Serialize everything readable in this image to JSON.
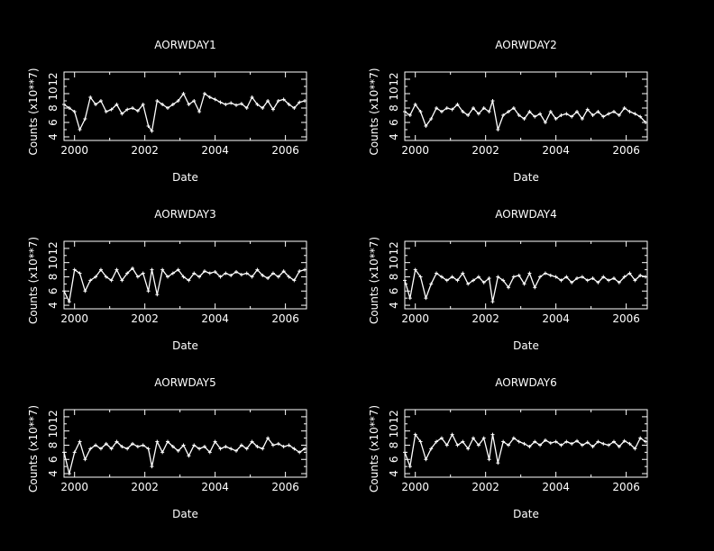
{
  "chart_data": [
    {
      "type": "line",
      "title": "AORWDAY1",
      "xlabel": "Date",
      "ylabel": "Counts (x10**7)",
      "xlim": [
        1999.7,
        2006.6
      ],
      "ylim": [
        3.5,
        13
      ],
      "xticks": [
        2000,
        2002,
        2004,
        2006
      ],
      "yticks": [
        4,
        6,
        8,
        10,
        12
      ],
      "grid": false,
      "x": [
        1999.7,
        1999.85,
        2000.0,
        2000.15,
        2000.3,
        2000.45,
        2000.6,
        2000.75,
        2000.9,
        2001.05,
        2001.2,
        2001.35,
        2001.5,
        2001.65,
        2001.8,
        2001.95,
        2002.1,
        2002.2,
        2002.35,
        2002.5,
        2002.65,
        2002.8,
        2002.95,
        2003.1,
        2003.25,
        2003.4,
        2003.55,
        2003.7,
        2003.85,
        2004.0,
        2004.15,
        2004.3,
        2004.45,
        2004.6,
        2004.75,
        2004.9,
        2005.05,
        2005.2,
        2005.35,
        2005.5,
        2005.65,
        2005.8,
        2005.95,
        2006.1,
        2006.25,
        2006.4,
        2006.55
      ],
      "y": [
        8.5,
        8.0,
        7.5,
        5.0,
        6.5,
        9.5,
        8.5,
        9.0,
        7.5,
        7.8,
        8.5,
        7.2,
        7.8,
        8.0,
        7.6,
        8.5,
        5.5,
        4.8,
        9.0,
        8.5,
        8.0,
        8.5,
        9.0,
        10.0,
        8.5,
        9.0,
        7.5,
        10.0,
        9.5,
        9.2,
        8.8,
        8.5,
        8.7,
        8.4,
        8.6,
        8.0,
        9.5,
        8.5,
        8.0,
        9.0,
        7.8,
        9.0,
        9.2,
        8.5,
        8.0,
        8.8,
        9.0
      ]
    },
    {
      "type": "line",
      "title": "AORWDAY2",
      "xlabel": "Date",
      "ylabel": "Counts (x10**7)",
      "xlim": [
        1999.7,
        2006.6
      ],
      "ylim": [
        3.5,
        13
      ],
      "xticks": [
        2000,
        2002,
        2004,
        2006
      ],
      "yticks": [
        4,
        6,
        8,
        10,
        12
      ],
      "grid": false,
      "x": [
        1999.7,
        1999.85,
        2000.0,
        2000.15,
        2000.3,
        2000.45,
        2000.6,
        2000.75,
        2000.9,
        2001.05,
        2001.2,
        2001.35,
        2001.5,
        2001.65,
        2001.8,
        2001.95,
        2002.1,
        2002.2,
        2002.35,
        2002.5,
        2002.65,
        2002.8,
        2002.95,
        2003.1,
        2003.25,
        2003.4,
        2003.55,
        2003.7,
        2003.85,
        2004.0,
        2004.15,
        2004.3,
        2004.45,
        2004.6,
        2004.75,
        2004.9,
        2005.05,
        2005.2,
        2005.35,
        2005.5,
        2005.65,
        2005.8,
        2005.95,
        2006.1,
        2006.25,
        2006.4,
        2006.55
      ],
      "y": [
        7.5,
        7.0,
        8.5,
        7.5,
        5.5,
        6.5,
        8.0,
        7.5,
        8.0,
        7.8,
        8.5,
        7.5,
        7.0,
        8.0,
        7.2,
        8.0,
        7.5,
        9.0,
        5.0,
        7.0,
        7.5,
        8.0,
        7.0,
        6.5,
        7.5,
        6.8,
        7.2,
        6.0,
        7.5,
        6.5,
        7.0,
        7.2,
        6.8,
        7.5,
        6.5,
        7.8,
        7.0,
        7.5,
        6.8,
        7.2,
        7.5,
        7.0,
        8.0,
        7.5,
        7.2,
        6.8,
        6.0
      ]
    },
    {
      "type": "line",
      "title": "AORWDAY3",
      "xlabel": "Date",
      "ylabel": "Counts (x10**7)",
      "xlim": [
        1999.7,
        2006.6
      ],
      "ylim": [
        3.5,
        13
      ],
      "xticks": [
        2000,
        2002,
        2004,
        2006
      ],
      "yticks": [
        4,
        6,
        8,
        10,
        12
      ],
      "grid": false,
      "x": [
        1999.7,
        1999.85,
        2000.0,
        2000.15,
        2000.3,
        2000.45,
        2000.6,
        2000.75,
        2000.9,
        2001.05,
        2001.2,
        2001.35,
        2001.5,
        2001.65,
        2001.8,
        2001.95,
        2002.1,
        2002.2,
        2002.35,
        2002.5,
        2002.65,
        2002.8,
        2002.95,
        2003.1,
        2003.25,
        2003.4,
        2003.55,
        2003.7,
        2003.85,
        2004.0,
        2004.15,
        2004.3,
        2004.45,
        2004.6,
        2004.75,
        2004.9,
        2005.05,
        2005.2,
        2005.35,
        2005.5,
        2005.65,
        2005.8,
        2005.95,
        2006.1,
        2006.25,
        2006.4,
        2006.55
      ],
      "y": [
        6.0,
        4.5,
        9.0,
        8.5,
        6.0,
        7.5,
        8.0,
        9.0,
        8.0,
        7.5,
        9.0,
        7.5,
        8.5,
        9.2,
        8.0,
        8.5,
        6.0,
        9.0,
        5.5,
        9.0,
        8.0,
        8.5,
        9.0,
        8.0,
        7.5,
        8.5,
        8.0,
        8.8,
        8.5,
        8.7,
        8.0,
        8.5,
        8.2,
        8.7,
        8.3,
        8.5,
        8.0,
        9.0,
        8.2,
        7.8,
        8.5,
        8.0,
        8.8,
        8.0,
        7.5,
        8.8,
        9.0
      ]
    },
    {
      "type": "line",
      "title": "AORWDAY4",
      "xlabel": "Date",
      "ylabel": "Counts (x10**7)",
      "xlim": [
        1999.7,
        2006.6
      ],
      "ylim": [
        3.5,
        13
      ],
      "xticks": [
        2000,
        2002,
        2004,
        2006
      ],
      "yticks": [
        4,
        6,
        8,
        10,
        12
      ],
      "grid": false,
      "x": [
        1999.7,
        1999.85,
        2000.0,
        2000.15,
        2000.3,
        2000.45,
        2000.6,
        2000.75,
        2000.9,
        2001.05,
        2001.2,
        2001.35,
        2001.5,
        2001.65,
        2001.8,
        2001.95,
        2002.1,
        2002.2,
        2002.35,
        2002.5,
        2002.65,
        2002.8,
        2002.95,
        2003.1,
        2003.25,
        2003.4,
        2003.55,
        2003.7,
        2003.85,
        2004.0,
        2004.15,
        2004.3,
        2004.45,
        2004.6,
        2004.75,
        2004.9,
        2005.05,
        2005.2,
        2005.35,
        2005.5,
        2005.65,
        2005.8,
        2005.95,
        2006.1,
        2006.25,
        2006.4,
        2006.55
      ],
      "y": [
        7.5,
        5.0,
        9.0,
        8.0,
        5.0,
        7.0,
        8.5,
        8.0,
        7.5,
        8.0,
        7.5,
        8.5,
        7.0,
        7.5,
        8.0,
        7.2,
        7.8,
        4.5,
        8.0,
        7.5,
        6.5,
        8.0,
        8.2,
        7.0,
        8.5,
        6.5,
        8.0,
        8.5,
        8.2,
        8.0,
        7.5,
        8.0,
        7.2,
        7.8,
        8.0,
        7.5,
        7.8,
        7.2,
        8.0,
        7.5,
        7.8,
        7.2,
        8.0,
        8.5,
        7.5,
        8.2,
        8.0
      ]
    },
    {
      "type": "line",
      "title": "AORWDAY5",
      "xlabel": "Date",
      "ylabel": "Counts (x10**7)",
      "xlim": [
        1999.7,
        2006.6
      ],
      "ylim": [
        3.5,
        13
      ],
      "xticks": [
        2000,
        2002,
        2004,
        2006
      ],
      "yticks": [
        4,
        6,
        8,
        10,
        12
      ],
      "grid": false,
      "x": [
        1999.7,
        1999.85,
        2000.0,
        2000.15,
        2000.3,
        2000.45,
        2000.6,
        2000.75,
        2000.9,
        2001.05,
        2001.2,
        2001.35,
        2001.5,
        2001.65,
        2001.8,
        2001.95,
        2002.1,
        2002.2,
        2002.35,
        2002.5,
        2002.65,
        2002.8,
        2002.95,
        2003.1,
        2003.25,
        2003.4,
        2003.55,
        2003.7,
        2003.85,
        2004.0,
        2004.15,
        2004.3,
        2004.45,
        2004.6,
        2004.75,
        2004.9,
        2005.05,
        2005.2,
        2005.35,
        2005.5,
        2005.65,
        2005.8,
        2005.95,
        2006.1,
        2006.25,
        2006.4,
        2006.55
      ],
      "y": [
        7.0,
        4.0,
        7.0,
        8.5,
        6.0,
        7.5,
        8.0,
        7.5,
        8.2,
        7.5,
        8.5,
        7.8,
        7.5,
        8.2,
        7.8,
        8.0,
        7.5,
        5.0,
        8.5,
        7.0,
        8.5,
        7.8,
        7.2,
        8.0,
        6.5,
        8.0,
        7.5,
        7.8,
        7.0,
        8.5,
        7.5,
        7.8,
        7.5,
        7.2,
        8.0,
        7.5,
        8.5,
        7.8,
        7.5,
        9.0,
        8.0,
        8.2,
        7.8,
        8.0,
        7.5,
        7.0,
        7.5
      ]
    },
    {
      "type": "line",
      "title": "AORWDAY6",
      "xlabel": "Date",
      "ylabel": "Counts (x10**7)",
      "xlim": [
        1999.7,
        2006.6
      ],
      "ylim": [
        3.5,
        13
      ],
      "xticks": [
        2000,
        2002,
        2004,
        2006
      ],
      "yticks": [
        4,
        6,
        8,
        10,
        12
      ],
      "grid": false,
      "x": [
        1999.7,
        1999.85,
        2000.0,
        2000.15,
        2000.3,
        2000.45,
        2000.6,
        2000.75,
        2000.9,
        2001.05,
        2001.2,
        2001.35,
        2001.5,
        2001.65,
        2001.8,
        2001.95,
        2002.1,
        2002.2,
        2002.35,
        2002.5,
        2002.65,
        2002.8,
        2002.95,
        2003.1,
        2003.25,
        2003.4,
        2003.55,
        2003.7,
        2003.85,
        2004.0,
        2004.15,
        2004.3,
        2004.45,
        2004.6,
        2004.75,
        2004.9,
        2005.05,
        2005.2,
        2005.35,
        2005.5,
        2005.65,
        2005.8,
        2005.95,
        2006.1,
        2006.25,
        2006.4,
        2006.55
      ],
      "y": [
        7.0,
        5.0,
        9.5,
        8.5,
        6.0,
        7.5,
        8.5,
        9.0,
        8.0,
        9.5,
        8.0,
        8.5,
        7.5,
        9.0,
        8.0,
        9.0,
        6.0,
        9.5,
        5.5,
        8.5,
        8.0,
        9.0,
        8.5,
        8.2,
        7.8,
        8.5,
        8.0,
        8.7,
        8.3,
        8.5,
        8.0,
        8.5,
        8.2,
        8.6,
        8.0,
        8.4,
        7.8,
        8.5,
        8.2,
        8.0,
        8.5,
        7.8,
        8.6,
        8.2,
        7.5,
        9.0,
        8.5
      ]
    }
  ]
}
